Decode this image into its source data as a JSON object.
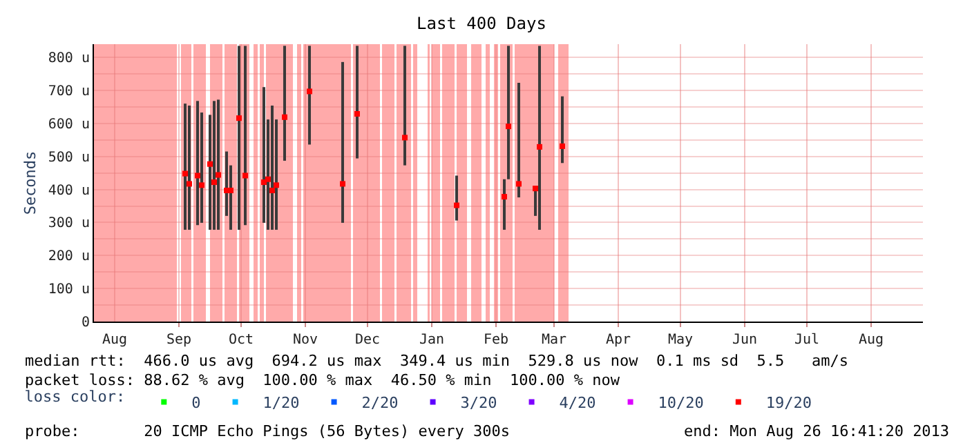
{
  "chart_data": {
    "type": "scatter",
    "title": "Last 400 Days",
    "ylabel": "Seconds",
    "x": [
      "2012-09-04",
      "2012-09-06",
      "2012-09-10",
      "2012-09-12",
      "2012-09-16",
      "2012-09-18",
      "2012-09-20",
      "2012-09-24",
      "2012-09-26",
      "2012-09-30",
      "2012-10-03",
      "2012-10-12",
      "2012-10-14",
      "2012-10-16",
      "2012-10-18",
      "2012-10-22",
      "2012-11-03",
      "2012-11-19",
      "2012-11-26",
      "2012-12-19",
      "2013-01-13",
      "2013-02-05",
      "2013-02-07",
      "2013-02-12",
      "2013-02-20",
      "2013-02-22",
      "2013-03-05"
    ],
    "series": [
      {
        "name": "0",
        "color": "#00ff00",
        "values": [
          null,
          null,
          null,
          null,
          null,
          null,
          null,
          null,
          null,
          null,
          null,
          null,
          null,
          null,
          null,
          null,
          null,
          null,
          null,
          null,
          null,
          null,
          null,
          null,
          null,
          null,
          null
        ]
      },
      {
        "name": "1/20",
        "color": "#00b8ff",
        "values": [
          null,
          null,
          null,
          null,
          null,
          null,
          null,
          null,
          null,
          null,
          null,
          null,
          null,
          null,
          null,
          null,
          null,
          null,
          null,
          null,
          null,
          null,
          null,
          null,
          null,
          null,
          null
        ]
      },
      {
        "name": "2/20",
        "color": "#0059ff",
        "values": [
          null,
          null,
          null,
          null,
          null,
          null,
          null,
          null,
          null,
          null,
          null,
          null,
          null,
          null,
          null,
          null,
          null,
          null,
          null,
          null,
          null,
          null,
          null,
          null,
          null,
          null,
          null
        ]
      },
      {
        "name": "3/20",
        "color": "#5e00ff",
        "values": [
          null,
          null,
          null,
          null,
          null,
          null,
          null,
          null,
          null,
          null,
          null,
          null,
          null,
          null,
          null,
          null,
          null,
          null,
          null,
          null,
          null,
          null,
          null,
          null,
          null,
          null,
          null
        ]
      },
      {
        "name": "4/20",
        "color": "#7e00ff",
        "values": [
          null,
          null,
          null,
          null,
          null,
          null,
          null,
          null,
          null,
          null,
          null,
          null,
          null,
          null,
          null,
          null,
          null,
          null,
          null,
          null,
          null,
          null,
          null,
          null,
          null,
          null,
          null
        ]
      },
      {
        "name": "10/20",
        "color": "#dd00ff",
        "values": [
          null,
          null,
          null,
          null,
          null,
          null,
          null,
          null,
          null,
          null,
          null,
          null,
          null,
          null,
          null,
          null,
          null,
          null,
          null,
          null,
          null,
          null,
          null,
          null,
          null,
          null,
          null
        ]
      },
      {
        "name": "19/20",
        "color": "#ff0000",
        "values": [
          448,
          417,
          442,
          413,
          477,
          422,
          444,
          397,
          397,
          616,
          442,
          422,
          431,
          397,
          413,
          619,
          697,
          417,
          629,
          557,
          352,
          378,
          591,
          417,
          403,
          529,
          531
        ],
        "errors": [
          [
            278,
            660
          ],
          [
            278,
            654
          ],
          [
            292,
            668
          ],
          [
            299,
            633
          ],
          [
            278,
            626
          ],
          [
            278,
            668
          ],
          [
            278,
            672
          ],
          [
            320,
            515
          ],
          [
            278,
            473
          ],
          [
            278,
            835
          ],
          [
            292,
            835
          ],
          [
            299,
            710
          ],
          [
            278,
            612
          ],
          [
            278,
            654
          ],
          [
            278,
            612
          ],
          [
            487,
            835
          ],
          [
            536,
            835
          ],
          [
            299,
            786
          ],
          [
            494,
            835
          ],
          [
            473,
            835
          ],
          [
            306,
            442
          ],
          [
            278,
            431
          ],
          [
            431,
            835
          ],
          [
            376,
            723
          ],
          [
            320,
            410
          ],
          [
            278,
            835
          ],
          [
            480,
            682
          ]
        ]
      }
    ],
    "bands": [
      {
        "axis": "x",
        "from": "2012-07-22",
        "to": "2012-08-31",
        "color": "#ffaaaa"
      },
      {
        "axis": "x",
        "from": "2012-09-02",
        "to": "2012-09-07",
        "color": "#ffaaaa"
      },
      {
        "axis": "x",
        "from": "2012-09-08",
        "to": "2012-09-14",
        "color": "#ffaaaa"
      },
      {
        "axis": "x",
        "from": "2012-09-16",
        "to": "2012-09-22",
        "color": "#ffaaaa"
      },
      {
        "axis": "x",
        "from": "2012-09-23",
        "to": "2012-09-29",
        "color": "#ffaaaa"
      },
      {
        "axis": "x",
        "from": "2012-09-30",
        "to": "2012-10-05",
        "color": "#ffaaaa"
      },
      {
        "axis": "x",
        "from": "2012-10-07",
        "to": "2012-10-09",
        "color": "#ffaaaa"
      },
      {
        "axis": "x",
        "from": "2012-10-10",
        "to": "2012-10-12",
        "color": "#ffaaaa"
      },
      {
        "axis": "x",
        "from": "2012-10-13",
        "to": "2012-10-21",
        "color": "#ffaaaa"
      },
      {
        "axis": "x",
        "from": "2012-10-21",
        "to": "2012-10-26",
        "color": "#ffaaaa"
      },
      {
        "axis": "x",
        "from": "2012-10-28",
        "to": "2012-10-30",
        "color": "#ffaaaa"
      },
      {
        "axis": "x",
        "from": "2012-10-31",
        "to": "2012-11-18",
        "color": "#ffaaaa"
      },
      {
        "axis": "x",
        "from": "2012-11-18",
        "to": "2012-11-23",
        "color": "#ffaaaa"
      },
      {
        "axis": "x",
        "from": "2012-11-24",
        "to": "2012-12-07",
        "color": "#ffaaaa"
      },
      {
        "axis": "x",
        "from": "2012-12-08",
        "to": "2012-12-14",
        "color": "#ffaaaa"
      },
      {
        "axis": "x",
        "from": "2012-12-15",
        "to": "2012-12-22",
        "color": "#ffaaaa"
      },
      {
        "axis": "x",
        "from": "2012-12-23",
        "to": "2012-12-25",
        "color": "#ffaaaa"
      },
      {
        "axis": "x",
        "from": "2012-12-30",
        "to": "2012-12-31",
        "color": "#ffaaaa"
      },
      {
        "axis": "x",
        "from": "2013-01-01",
        "to": "2013-01-05",
        "color": "#ffaaaa"
      },
      {
        "axis": "x",
        "from": "2013-01-06",
        "to": "2013-01-12",
        "color": "#ffaaaa"
      },
      {
        "axis": "x",
        "from": "2013-01-13",
        "to": "2013-01-18",
        "color": "#ffaaaa"
      },
      {
        "axis": "x",
        "from": "2013-01-20",
        "to": "2013-01-25",
        "color": "#ffaaaa"
      },
      {
        "axis": "x",
        "from": "2013-01-27",
        "to": "2013-01-29",
        "color": "#ffaaaa"
      },
      {
        "axis": "x",
        "from": "2013-01-31",
        "to": "2013-02-02",
        "color": "#ffaaaa"
      },
      {
        "axis": "x",
        "from": "2013-02-03",
        "to": "2013-02-09",
        "color": "#ffaaaa"
      },
      {
        "axis": "x",
        "from": "2013-02-10",
        "to": "2013-03-01",
        "color": "#ffaaaa"
      },
      {
        "axis": "x",
        "from": "2013-03-03",
        "to": "2013-03-08",
        "color": "#ffaaaa"
      }
    ],
    "xlim": [
      "2012-07-22",
      "2013-08-26"
    ],
    "xticks": [
      {
        "value": "2012-08-01",
        "label": "Aug"
      },
      {
        "value": "2012-09-01",
        "label": "Sep"
      },
      {
        "value": "2012-10-01",
        "label": "Oct"
      },
      {
        "value": "2012-11-01",
        "label": "Nov"
      },
      {
        "value": "2012-12-01",
        "label": "Dec"
      },
      {
        "value": "2013-01-01",
        "label": "Jan"
      },
      {
        "value": "2013-02-01",
        "label": "Feb"
      },
      {
        "value": "2013-03-01",
        "label": "Mar"
      },
      {
        "value": "2013-04-01",
        "label": "Apr"
      },
      {
        "value": "2013-05-01",
        "label": "May"
      },
      {
        "value": "2013-06-01",
        "label": "Jun"
      },
      {
        "value": "2013-07-01",
        "label": "Jul"
      },
      {
        "value": "2013-08-01",
        "label": "Aug"
      }
    ],
    "ylim": [
      0,
      840
    ],
    "yticks": [
      0,
      {
        "value": 50,
        "label": null
      },
      {
        "value": 100,
        "label": "100 u"
      },
      {
        "value": 150,
        "label": null
      },
      {
        "value": 200,
        "label": "200 u"
      },
      {
        "value": 250,
        "label": null
      },
      {
        "value": 300,
        "label": "300 u"
      },
      {
        "value": 350,
        "label": null
      },
      {
        "value": 400,
        "label": "400 u"
      },
      {
        "value": 450,
        "label": null
      },
      {
        "value": 500,
        "label": "500 u"
      },
      {
        "value": 550,
        "label": null
      },
      {
        "value": 600,
        "label": "600 u"
      },
      {
        "value": 650,
        "label": null
      },
      {
        "value": 700,
        "label": "700 u"
      },
      {
        "value": 750,
        "label": null
      },
      {
        "value": 800,
        "label": "800 u"
      }
    ],
    "grid": true,
    "marker": "square",
    "legend": "bottom",
    "legend_title": "loss color:",
    "annotations": [
      "median rtt:  466.0 us avg  694.2 us max  349.4 us min  529.8 us now  0.1 ms sd  5.5   am/s",
      "packet loss: 88.62 % avg  100.00 % max  46.50 % min  100.00 % now",
      "probe:       20 ICMP Echo Pings (56 Bytes) every 300s",
      "end: Mon Aug 26 16:41:20 2013"
    ]
  }
}
